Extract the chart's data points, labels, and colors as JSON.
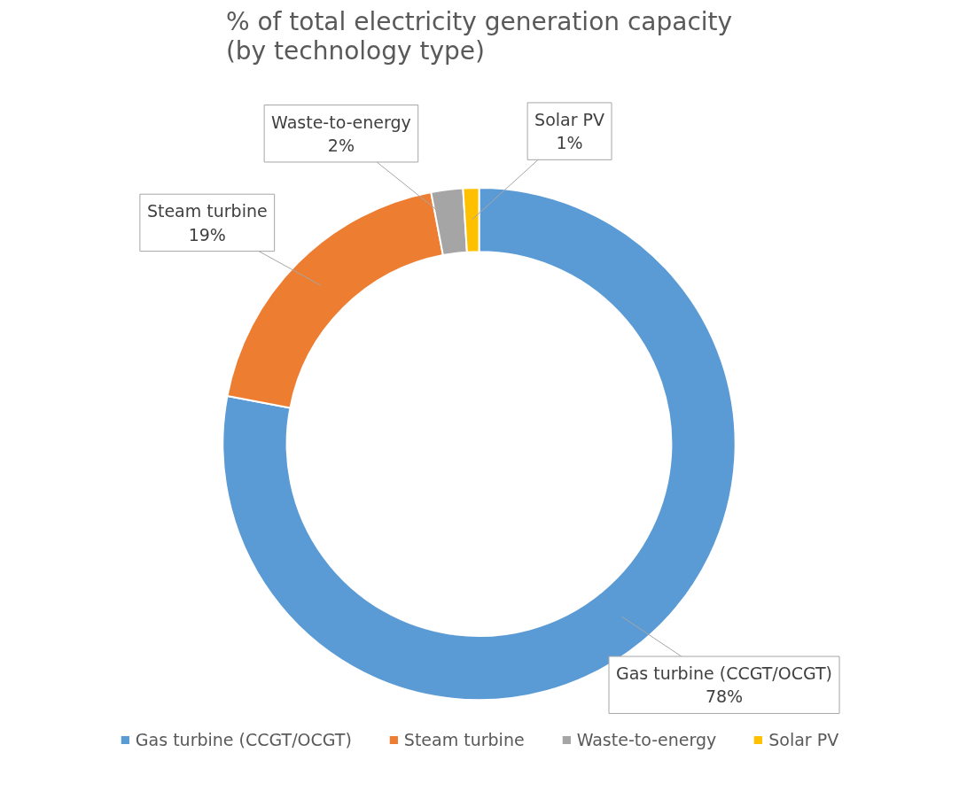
{
  "chart_data": {
    "type": "donut",
    "title": "% of total electricity generation capacity (by technology type)",
    "categories": [
      "Gas turbine (CCGT/OCGT)",
      "Steam turbine",
      "Waste-to-energy",
      "Solar PV"
    ],
    "values": [
      78,
      19,
      2,
      1
    ],
    "value_labels": [
      "78%",
      "19%",
      "2%",
      "1%"
    ],
    "colors": [
      "#5b9bd5",
      "#ed7d31",
      "#a5a5a5",
      "#ffc000"
    ],
    "legend": "bottom"
  }
}
